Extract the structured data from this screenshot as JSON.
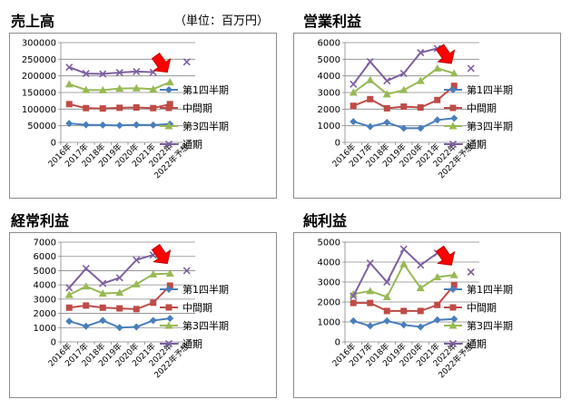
{
  "header": {
    "unit_note": "（単位：百万円）"
  },
  "legend_labels": [
    "第1四半期",
    "中間期",
    "第3四半期",
    "通期"
  ],
  "colors": {
    "q1": "#4a7ebb",
    "mid": "#be4b48",
    "q3": "#98b954",
    "full": "#7d60a0",
    "arrow": "#ff0000",
    "arrow_edge": "#c00000",
    "grid": "#878787"
  },
  "chart_data": [
    {
      "type": "line",
      "title": "売上高",
      "categories": [
        "2016年",
        "2017年",
        "2018年",
        "2019年",
        "2020年",
        "2021年",
        "2022年",
        "2022年予想"
      ],
      "ylim": [
        0,
        300000
      ],
      "yticks": [
        0,
        50000,
        100000,
        150000,
        200000,
        250000,
        300000
      ],
      "ytick_labels": [
        "0",
        "50000",
        "100000",
        "150000",
        "200000",
        "250000",
        "300000"
      ],
      "grid": true,
      "legend": "right",
      "highlight_arrow_at": "2022年",
      "series": [
        {
          "name": "第1四半期",
          "values": [
            57000,
            53000,
            52000,
            51000,
            53000,
            52000,
            55000,
            null
          ]
        },
        {
          "name": "中間期",
          "values": [
            115000,
            103000,
            102000,
            104000,
            105000,
            103000,
            115000,
            null
          ]
        },
        {
          "name": "第3四半期",
          "values": [
            175000,
            158000,
            157000,
            162000,
            163000,
            160000,
            181000,
            null
          ]
        },
        {
          "name": "通期",
          "values": [
            226000,
            207000,
            206000,
            210000,
            213000,
            211000,
            null,
            242000
          ]
        }
      ]
    },
    {
      "type": "line",
      "title": "営業利益",
      "categories": [
        "2016年",
        "2017年",
        "2018年",
        "2019年",
        "2020年",
        "2021年",
        "2022年",
        "2022年予想"
      ],
      "ylim": [
        0,
        6000
      ],
      "yticks": [
        0,
        1000,
        2000,
        3000,
        4000,
        5000,
        6000
      ],
      "ytick_labels": [
        "0",
        "1000",
        "2000",
        "3000",
        "4000",
        "5000",
        "6000"
      ],
      "grid": true,
      "legend": "right",
      "highlight_arrow_at": "2022年",
      "series": [
        {
          "name": "第1四半期",
          "values": [
            1250,
            950,
            1200,
            850,
            850,
            1350,
            1450,
            null
          ]
        },
        {
          "name": "中間期",
          "values": [
            2200,
            2600,
            2050,
            2150,
            2100,
            2550,
            3400,
            null
          ]
        },
        {
          "name": "第3四半期",
          "values": [
            3000,
            3750,
            2900,
            3150,
            3700,
            4450,
            4150,
            null
          ]
        },
        {
          "name": "通期",
          "values": [
            3500,
            4850,
            3700,
            4150,
            5400,
            5650,
            null,
            4450
          ]
        }
      ]
    },
    {
      "type": "line",
      "title": "経常利益",
      "categories": [
        "2016年",
        "2017年",
        "2018年",
        "2019年",
        "2020年",
        "2021年",
        "2022年",
        "2022年予想"
      ],
      "ylim": [
        0,
        7000
      ],
      "yticks": [
        0,
        1000,
        2000,
        3000,
        4000,
        5000,
        6000,
        7000
      ],
      "ytick_labels": [
        "0",
        "1000",
        "2000",
        "3000",
        "4000",
        "5000",
        "6000",
        "7000"
      ],
      "grid": true,
      "legend": "right",
      "highlight_arrow_at": "2022年",
      "series": [
        {
          "name": "第1四半期",
          "values": [
            1450,
            1100,
            1500,
            1000,
            1050,
            1500,
            1650,
            null
          ]
        },
        {
          "name": "中間期",
          "values": [
            2400,
            2550,
            2400,
            2350,
            2300,
            2750,
            3950,
            null
          ]
        },
        {
          "name": "第3四半期",
          "values": [
            3300,
            3900,
            3400,
            3450,
            4050,
            4750,
            4800,
            null
          ]
        },
        {
          "name": "通期",
          "values": [
            3800,
            5150,
            4100,
            4500,
            5750,
            6100,
            null,
            5000
          ]
        }
      ]
    },
    {
      "type": "line",
      "title": "純利益",
      "categories": [
        "2016年",
        "2017年",
        "2018年",
        "2019年",
        "2020年",
        "2021年",
        "2022年",
        "2022年予想"
      ],
      "ylim": [
        0,
        5000
      ],
      "yticks": [
        0,
        1000,
        2000,
        3000,
        4000,
        5000
      ],
      "ytick_labels": [
        "0",
        "1000",
        "2000",
        "3000",
        "4000",
        "5000"
      ],
      "grid": true,
      "legend": "right",
      "highlight_arrow_at": "2022年",
      "series": [
        {
          "name": "第1四半期",
          "values": [
            1050,
            800,
            1050,
            850,
            750,
            1100,
            1150,
            null
          ]
        },
        {
          "name": "中間期",
          "values": [
            1950,
            1950,
            1550,
            1550,
            1550,
            1850,
            2850,
            null
          ]
        },
        {
          "name": "第3四半期",
          "values": [
            2400,
            2550,
            2250,
            3900,
            2700,
            3250,
            3350,
            null
          ]
        },
        {
          "name": "通期",
          "values": [
            2300,
            3950,
            3000,
            4650,
            3850,
            4450,
            null,
            3500
          ]
        }
      ]
    }
  ]
}
